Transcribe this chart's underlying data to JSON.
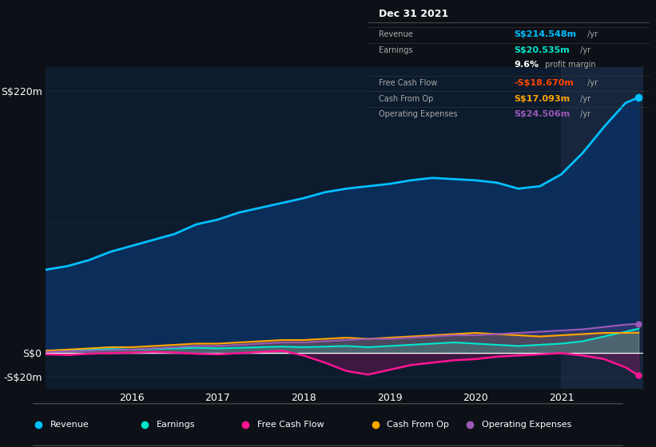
{
  "background_color": "#0d1117",
  "plot_bg_color": "#0d1b2e",
  "grid_color": "#2a3a5a",
  "title_date": "Dec 31 2021",
  "info_box": {
    "Revenue": {
      "value": "S$214.548m /yr",
      "color": "#00bfff"
    },
    "Earnings": {
      "value": "S$20.535m /yr",
      "color": "#00e5cc"
    },
    "profit_margin": "9.6% profit margin",
    "Free Cash Flow": {
      "value": "-S$18.670m /yr",
      "color": "#ff4500"
    },
    "Cash From Op": {
      "value": "S$17.093m /yr",
      "color": "#ffa500"
    },
    "Operating Expenses": {
      "value": "S$24.506m /yr",
      "color": "#9b59b6"
    }
  },
  "years": [
    2015.0,
    2015.25,
    2015.5,
    2015.75,
    2016.0,
    2016.25,
    2016.5,
    2016.75,
    2017.0,
    2017.25,
    2017.5,
    2017.75,
    2018.0,
    2018.25,
    2018.5,
    2018.75,
    2019.0,
    2019.25,
    2019.5,
    2019.75,
    2020.0,
    2020.25,
    2020.5,
    2020.75,
    2021.0,
    2021.25,
    2021.5,
    2021.75,
    2021.9
  ],
  "revenue": [
    70,
    73,
    78,
    85,
    90,
    95,
    100,
    108,
    112,
    118,
    122,
    126,
    130,
    135,
    138,
    140,
    142,
    145,
    147,
    146,
    145,
    143,
    138,
    140,
    150,
    168,
    190,
    210,
    214.5
  ],
  "earnings": [
    2,
    2.5,
    3,
    3.5,
    3,
    3.5,
    4,
    4.5,
    4,
    4.5,
    5,
    5.5,
    5,
    5.5,
    6,
    5,
    6,
    7,
    8,
    9,
    8,
    7,
    6,
    7,
    8,
    10,
    14,
    18,
    20.5
  ],
  "free_cash_flow": [
    -1,
    -1.5,
    -0.5,
    0,
    0.5,
    1,
    0.5,
    -0.5,
    -1,
    0,
    1,
    2,
    -2,
    -8,
    -15,
    -18,
    -14,
    -10,
    -8,
    -6,
    -5,
    -3,
    -2,
    -1,
    0,
    -2,
    -5,
    -12,
    -18.7
  ],
  "cash_from_op": [
    2,
    3,
    4,
    5,
    5,
    6,
    7,
    8,
    8,
    9,
    10,
    11,
    11,
    12,
    13,
    12,
    13,
    14,
    15,
    16,
    17,
    16,
    15,
    14,
    15,
    16,
    17,
    17,
    17.1
  ],
  "op_expenses": [
    1,
    1.5,
    2,
    2.5,
    3,
    4,
    5,
    6,
    6,
    7,
    8,
    9,
    9,
    10,
    11,
    12,
    12,
    13,
    14,
    15,
    15,
    16,
    17,
    18,
    19,
    20,
    22,
    24,
    24.5
  ],
  "revenue_color": "#00bfff",
  "earnings_color": "#00e5cc",
  "free_cash_flow_color": "#ff1493",
  "cash_from_op_color": "#ffa500",
  "op_expenses_color": "#9b59b6",
  "revenue_fill_color": "#0a3060",
  "ylim": [
    -30,
    240
  ],
  "yticks": [
    -20,
    0,
    220
  ],
  "ytick_labels": [
    "-S$20m",
    "S$0",
    "S$220m"
  ],
  "xticks": [
    2016,
    2017,
    2018,
    2019,
    2020,
    2021
  ],
  "highlight_x_start": 2021.0,
  "legend_items": [
    {
      "label": "Revenue",
      "color": "#00bfff"
    },
    {
      "label": "Earnings",
      "color": "#00e5cc"
    },
    {
      "label": "Free Cash Flow",
      "color": "#ff1493"
    },
    {
      "label": "Cash From Op",
      "color": "#ffa500"
    },
    {
      "label": "Operating Expenses",
      "color": "#9b59b6"
    }
  ]
}
